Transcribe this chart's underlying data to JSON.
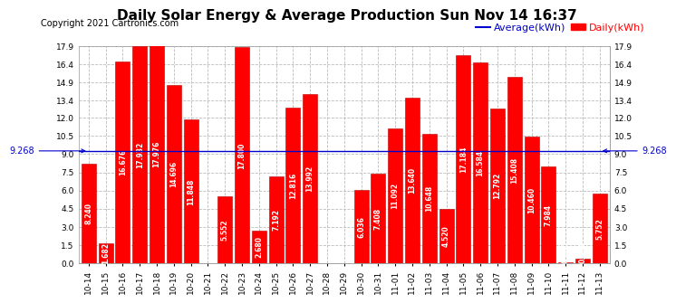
{
  "title": "Daily Solar Energy & Average Production Sun Nov 14 16:37",
  "copyright": "Copyright 2021 Cartronics.com",
  "average_label": "Average(kWh)",
  "daily_label": "Daily(kWh)",
  "average_value": 9.268,
  "categories": [
    "10-14",
    "10-15",
    "10-16",
    "10-17",
    "10-18",
    "10-19",
    "10-20",
    "10-21",
    "10-22",
    "10-23",
    "10-24",
    "10-25",
    "10-26",
    "10-27",
    "10-28",
    "10-29",
    "10-30",
    "10-31",
    "11-01",
    "11-02",
    "11-03",
    "11-04",
    "11-05",
    "11-06",
    "11-07",
    "11-08",
    "11-09",
    "11-10",
    "11-11",
    "11-12",
    "11-13"
  ],
  "values": [
    8.24,
    1.682,
    16.676,
    17.932,
    17.976,
    14.696,
    11.848,
    0.0,
    5.552,
    17.8,
    2.68,
    7.192,
    12.816,
    13.992,
    0.0,
    0.0,
    6.036,
    7.408,
    11.092,
    13.64,
    10.648,
    4.52,
    17.184,
    16.584,
    12.792,
    15.408,
    10.46,
    7.984,
    0.06,
    0.404,
    5.752
  ],
  "bar_color": "#ff0000",
  "bar_edge_color": "#bb0000",
  "average_line_color": "#0000cc",
  "background_color": "#ffffff",
  "plot_bg_color": "#ffffff",
  "ylim": [
    0,
    17.9
  ],
  "yticks": [
    0.0,
    1.5,
    3.0,
    4.5,
    6.0,
    7.5,
    9.0,
    10.5,
    12.0,
    13.4,
    14.9,
    16.4,
    17.9
  ],
  "grid_color": "#bbbbbb",
  "title_fontsize": 11,
  "copyright_fontsize": 7,
  "tick_fontsize": 6.5,
  "value_fontsize": 5.5,
  "legend_fontsize": 8,
  "avg_annotation_fontsize": 7
}
